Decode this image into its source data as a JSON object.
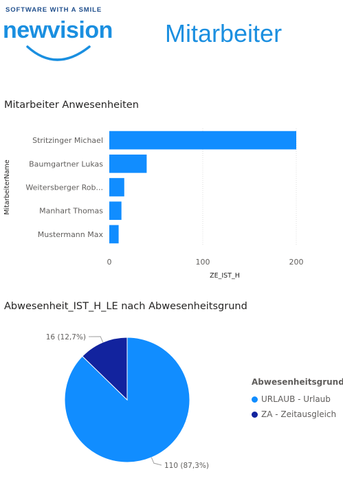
{
  "logo": {
    "tagline": "SOFTWARE WITH A SMILE",
    "wordmark": "newvision",
    "color": "#1a8fe0",
    "tagline_color": "#1f4e8c"
  },
  "page": {
    "title": "Mitarbeiter",
    "title_color": "#1b8fe0"
  },
  "visuals": {
    "bar": {
      "title": "Mitarbeiter Anwesenheiten"
    },
    "pie": {
      "title": "Abwesenheit_IST_H_LE nach Abwesenheitsgrund"
    }
  },
  "chart_data": [
    {
      "type": "bar",
      "orientation": "horizontal",
      "title": "Mitarbeiter Anwesenheiten",
      "xlabel": "ZE_IST_H",
      "ylabel": "MitarbeiterName",
      "categories": [
        "Stritzinger Michael",
        "Baumgartner Lukas",
        "Weitersberger Rob...",
        "Manhart Thomas",
        "Mustermann Max"
      ],
      "values": [
        200,
        40,
        16,
        13,
        10
      ],
      "xlim": [
        0,
        200
      ],
      "xticks": [
        0,
        100,
        200
      ],
      "grid": true,
      "color": "#118dff"
    },
    {
      "type": "pie",
      "title": "Abwesenheit_IST_H_LE nach Abwesenheitsgrund",
      "legend_title": "Abwesenheitsgrund",
      "legend_position": "right",
      "slices": [
        {
          "name": "URLAUB - Urlaub",
          "value": 110,
          "label": "110 (87,3%)",
          "color": "#118dff"
        },
        {
          "name": "ZA - Zeitausgleich",
          "value": 16,
          "label": "16 (12,7%)",
          "color": "#12239e"
        }
      ]
    }
  ]
}
